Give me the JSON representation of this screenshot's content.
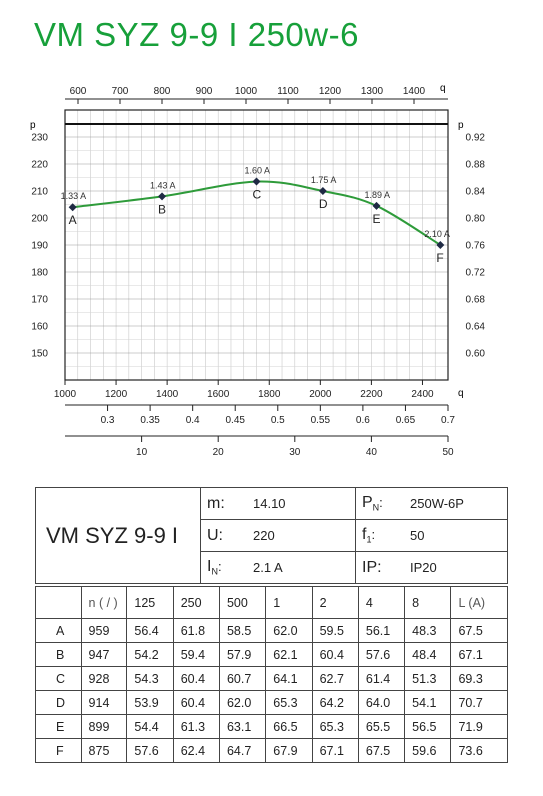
{
  "title": "VM SYZ 9-9 I 250w-6",
  "chart_data": {
    "type": "line",
    "x": [
      1030,
      1380,
      1750,
      2010,
      2220,
      2470
    ],
    "y": [
      204,
      208,
      213.5,
      210,
      204.5,
      190
    ],
    "point_labels": [
      "A",
      "B",
      "C",
      "D",
      "E",
      "F"
    ],
    "current_labels": [
      "1.33 A",
      "1.43 A",
      "1.60 A",
      "1.75 A",
      "1.89 A",
      "2.10 A"
    ],
    "xlim": [
      1000,
      2500
    ],
    "ylim": [
      140,
      240
    ],
    "xlabel": "q",
    "ylabel": "p",
    "top_axis_label": "q",
    "right_axis_label": "p",
    "flow_bottom_ticks": [
      "1000",
      "1200",
      "1400",
      "1600",
      "1800",
      "2000",
      "2200",
      "2400"
    ],
    "flow_top_ticks": [
      "600",
      "700",
      "800",
      "900",
      "1000",
      "1100",
      "1200",
      "1300",
      "1400"
    ],
    "left_ticks": [
      "150",
      "160",
      "170",
      "180",
      "190",
      "200",
      "210",
      "220",
      "230"
    ],
    "right_ticks": [
      "0.60",
      "0.64",
      "0.68",
      "0.72",
      "0.76",
      "0.80",
      "0.84",
      "0.88",
      "0.92"
    ],
    "aux_axis1_ticks": [
      "0.3",
      "0.35",
      "0.4",
      "0.45",
      "0.5",
      "0.55",
      "0.6",
      "0.65",
      "0.7"
    ],
    "aux_axis2_ticks": [
      "10",
      "20",
      "30",
      "40",
      "50"
    ],
    "series_color": "#2e9b3a",
    "marker_color": "#1f2a44",
    "grid": true
  },
  "spec": {
    "model": "VM SYZ 9-9 I",
    "m_label": "m:",
    "m_value": "14.10",
    "u_label": "U:",
    "u_value": "220",
    "i_label": "I",
    "i_sub": "N",
    "i_colon": ":",
    "i_value": "2.1  A",
    "p_label": "P",
    "p_sub": "N",
    "p_colon": ":",
    "p_value": "250W-6P",
    "f_label": "f",
    "f_sub": "1",
    "f_colon": ":",
    "f_value": "50",
    "ip_label": "IP:",
    "ip_value": "IP20"
  },
  "noise_table": {
    "header": [
      "",
      "n ( / )",
      "125",
      "250",
      "500",
      "1",
      "2",
      "4",
      "8",
      "L",
      "(A)"
    ],
    "rows": [
      [
        "A",
        "959",
        "56.4",
        "61.8",
        "58.5",
        "62.0",
        "59.5",
        "56.1",
        "48.3",
        "67.5"
      ],
      [
        "B",
        "947",
        "54.2",
        "59.4",
        "57.9",
        "62.1",
        "60.4",
        "57.6",
        "48.4",
        "67.1"
      ],
      [
        "C",
        "928",
        "54.3",
        "60.4",
        "60.7",
        "64.1",
        "62.7",
        "61.4",
        "51.3",
        "69.3"
      ],
      [
        "D",
        "914",
        "53.9",
        "60.4",
        "62.0",
        "65.3",
        "64.2",
        "64.0",
        "54.1",
        "70.7"
      ],
      [
        "E",
        "899",
        "54.4",
        "61.3",
        "63.1",
        "66.5",
        "65.3",
        "65.5",
        "56.5",
        "71.9"
      ],
      [
        "F",
        "875",
        "57.6",
        "62.4",
        "64.7",
        "67.9",
        "67.1",
        "67.5",
        "59.6",
        "73.6"
      ]
    ]
  }
}
